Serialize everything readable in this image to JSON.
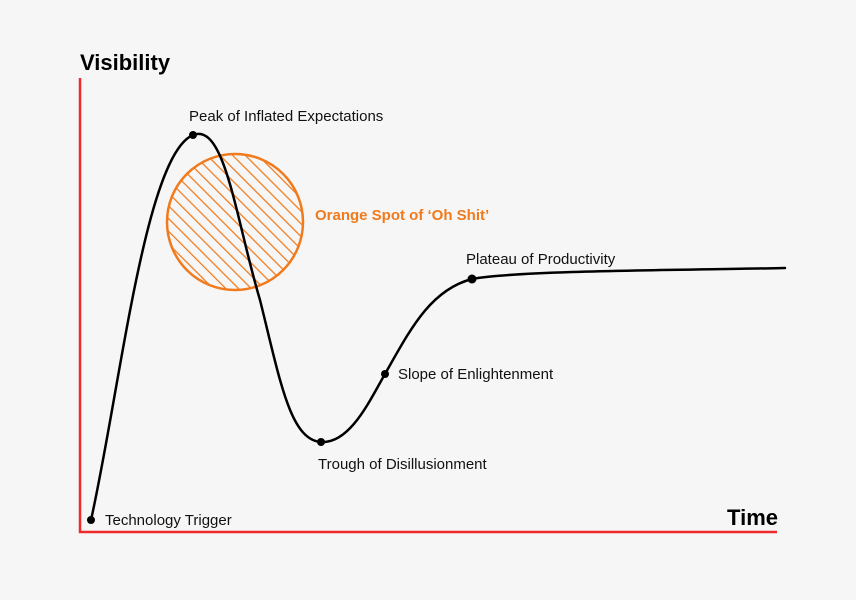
{
  "axes": {
    "y_title": "Visibility",
    "x_title": "Time",
    "color": "#ee2a2a"
  },
  "stages": [
    {
      "id": "technology-trigger",
      "label": "Technology Trigger"
    },
    {
      "id": "peak",
      "label": "Peak of Inflated Expectations"
    },
    {
      "id": "trough",
      "label": "Trough of Disillusionment"
    },
    {
      "id": "slope",
      "label": "Slope of Enlightenment"
    },
    {
      "id": "plateau",
      "label": "Plateau of Productivity"
    }
  ],
  "highlight": {
    "label": "Orange Spot of ‘Oh Shit’",
    "color": "#f07a1c"
  },
  "curve_color": "#000000"
}
